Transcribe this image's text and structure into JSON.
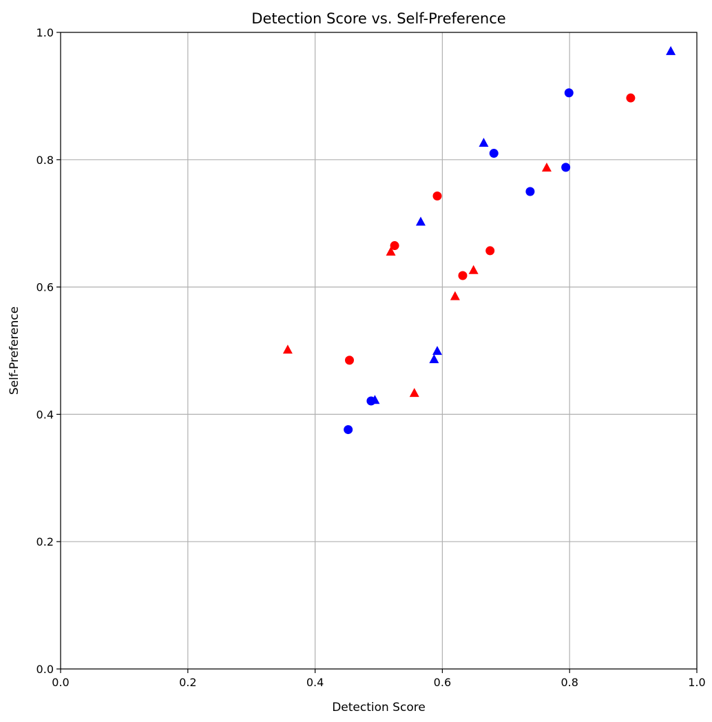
{
  "chart_data": {
    "type": "scatter",
    "title": "Detection Score vs. Self-Preference",
    "xlabel": "Detection Score",
    "ylabel": "Self-Preference",
    "xlim": [
      0.0,
      1.0
    ],
    "ylim": [
      0.0,
      1.0
    ],
    "xticks": [
      0.0,
      0.2,
      0.4,
      0.6,
      0.8,
      1.0
    ],
    "yticks": [
      0.0,
      0.2,
      0.4,
      0.6,
      0.8,
      1.0
    ],
    "xtick_labels": [
      "0.0",
      "0.2",
      "0.4",
      "0.6",
      "0.8",
      "1.0"
    ],
    "ytick_labels": [
      "0.0",
      "0.2",
      "0.4",
      "0.6",
      "0.8",
      "1.0"
    ],
    "grid": true,
    "legend": false,
    "series": [
      {
        "color": "#ff0000",
        "marker": "circle",
        "points": [
          {
            "x": 0.454,
            "y": 0.485
          },
          {
            "x": 0.525,
            "y": 0.665
          },
          {
            "x": 0.592,
            "y": 0.743
          },
          {
            "x": 0.632,
            "y": 0.618
          },
          {
            "x": 0.675,
            "y": 0.657
          },
          {
            "x": 0.896,
            "y": 0.897
          }
        ]
      },
      {
        "color": "#ff0000",
        "marker": "triangle",
        "points": [
          {
            "x": 0.357,
            "y": 0.501
          },
          {
            "x": 0.519,
            "y": 0.655
          },
          {
            "x": 0.556,
            "y": 0.433
          },
          {
            "x": 0.62,
            "y": 0.585
          },
          {
            "x": 0.649,
            "y": 0.626
          },
          {
            "x": 0.764,
            "y": 0.787
          }
        ]
      },
      {
        "color": "#0000ff",
        "marker": "circle",
        "points": [
          {
            "x": 0.452,
            "y": 0.376
          },
          {
            "x": 0.488,
            "y": 0.421
          },
          {
            "x": 0.681,
            "y": 0.81
          },
          {
            "x": 0.738,
            "y": 0.75
          },
          {
            "x": 0.794,
            "y": 0.788
          },
          {
            "x": 0.799,
            "y": 0.905
          }
        ]
      },
      {
        "color": "#0000ff",
        "marker": "triangle",
        "points": [
          {
            "x": 0.494,
            "y": 0.422
          },
          {
            "x": 0.566,
            "y": 0.702
          },
          {
            "x": 0.587,
            "y": 0.486
          },
          {
            "x": 0.592,
            "y": 0.499
          },
          {
            "x": 0.665,
            "y": 0.826
          },
          {
            "x": 0.959,
            "y": 0.97
          }
        ]
      }
    ]
  }
}
